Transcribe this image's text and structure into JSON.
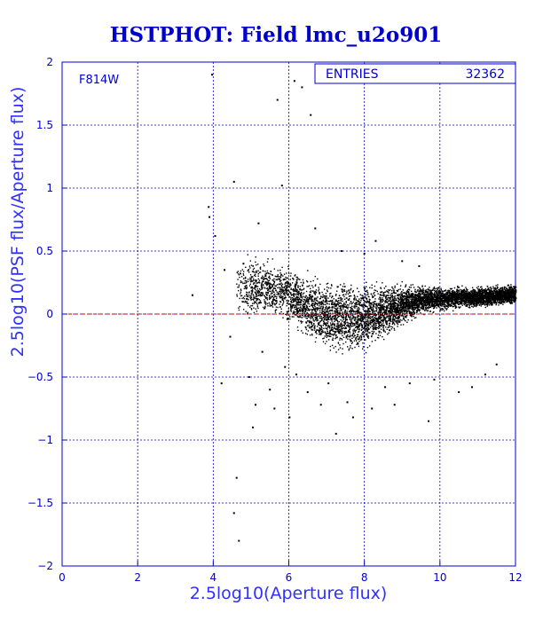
{
  "chart_data": {
    "type": "scatter",
    "title": "HSTPHOT: Field lmc_u2o901",
    "xlabel": "2.5log10(Aperture flux)",
    "ylabel": "2.5log10(PSF flux/Aperture flux)",
    "xlim": [
      0,
      12
    ],
    "ylim": [
      -2,
      2
    ],
    "x_ticks": [
      0,
      2,
      4,
      6,
      8,
      10,
      12
    ],
    "y_ticks": [
      -2,
      -1.5,
      -1,
      -0.5,
      0,
      0.5,
      1,
      1.5,
      2
    ],
    "x_tick_labels": [
      "0",
      "2",
      "4",
      "6",
      "8",
      "10",
      "12"
    ],
    "y_tick_labels": [
      "−2",
      "−1.5",
      "−1",
      "−0.5",
      "0",
      "0.5",
      "1",
      "1.5",
      "2"
    ],
    "grid": true,
    "filter_label": "F814W",
    "stats_box": {
      "label": "ENTRIES",
      "value": "32362"
    },
    "reference_line": {
      "y": 0,
      "color": "#cc0000",
      "style": "dashed"
    },
    "dense_envelope": {
      "x": [
        4.6,
        5.0,
        5.5,
        6.0,
        6.5,
        7.0,
        7.5,
        8.0,
        8.5,
        9.0,
        9.5,
        10.0,
        10.5,
        11.0,
        11.5,
        12.0
      ],
      "upper": [
        0.45,
        0.5,
        0.45,
        0.4,
        0.33,
        0.3,
        0.28,
        0.27,
        0.26,
        0.25,
        0.24,
        0.23,
        0.23,
        0.23,
        0.24,
        0.25
      ],
      "lower": [
        -0.02,
        -0.05,
        -0.05,
        -0.08,
        -0.25,
        -0.32,
        -0.35,
        -0.3,
        -0.2,
        -0.1,
        0.0,
        0.02,
        0.04,
        0.05,
        0.06,
        0.07
      ]
    },
    "outlier_points": [
      {
        "x": 3.45,
        "y": 0.15
      },
      {
        "x": 3.88,
        "y": 0.85
      },
      {
        "x": 3.9,
        "y": 0.77
      },
      {
        "x": 3.97,
        "y": 1.9
      },
      {
        "x": 4.05,
        "y": 0.62
      },
      {
        "x": 4.22,
        "y": -0.55
      },
      {
        "x": 4.3,
        "y": 0.35
      },
      {
        "x": 4.45,
        "y": -0.18
      },
      {
        "x": 4.55,
        "y": 1.05
      },
      {
        "x": 4.55,
        "y": -1.58
      },
      {
        "x": 4.62,
        "y": -1.3
      },
      {
        "x": 4.68,
        "y": -1.8
      },
      {
        "x": 4.8,
        "y": 0.4
      },
      {
        "x": 4.95,
        "y": -0.5
      },
      {
        "x": 5.05,
        "y": -0.9
      },
      {
        "x": 5.12,
        "y": -0.72
      },
      {
        "x": 5.2,
        "y": 0.72
      },
      {
        "x": 5.3,
        "y": -0.3
      },
      {
        "x": 5.5,
        "y": -0.6
      },
      {
        "x": 5.62,
        "y": -0.75
      },
      {
        "x": 5.7,
        "y": 1.7
      },
      {
        "x": 5.82,
        "y": 1.02
      },
      {
        "x": 5.9,
        "y": -0.42
      },
      {
        "x": 6.02,
        "y": -0.82
      },
      {
        "x": 6.15,
        "y": 1.85
      },
      {
        "x": 6.2,
        "y": -0.48
      },
      {
        "x": 6.35,
        "y": 1.8
      },
      {
        "x": 6.5,
        "y": -0.62
      },
      {
        "x": 6.58,
        "y": 1.58
      },
      {
        "x": 6.7,
        "y": 0.68
      },
      {
        "x": 6.85,
        "y": -0.72
      },
      {
        "x": 7.05,
        "y": -0.55
      },
      {
        "x": 7.25,
        "y": -0.95
      },
      {
        "x": 7.4,
        "y": 0.5
      },
      {
        "x": 7.55,
        "y": -0.7
      },
      {
        "x": 7.7,
        "y": -0.82
      },
      {
        "x": 8.0,
        "y": 0.48
      },
      {
        "x": 8.2,
        "y": -0.75
      },
      {
        "x": 8.3,
        "y": 0.58
      },
      {
        "x": 8.55,
        "y": -0.58
      },
      {
        "x": 8.8,
        "y": -0.72
      },
      {
        "x": 9.0,
        "y": 0.42
      },
      {
        "x": 9.2,
        "y": -0.55
      },
      {
        "x": 9.45,
        "y": 0.38
      },
      {
        "x": 9.7,
        "y": -0.85
      },
      {
        "x": 9.85,
        "y": -0.52
      },
      {
        "x": 10.5,
        "y": -0.62
      },
      {
        "x": 10.85,
        "y": -0.58
      },
      {
        "x": 11.2,
        "y": -0.48
      },
      {
        "x": 11.5,
        "y": -0.4
      }
    ]
  }
}
